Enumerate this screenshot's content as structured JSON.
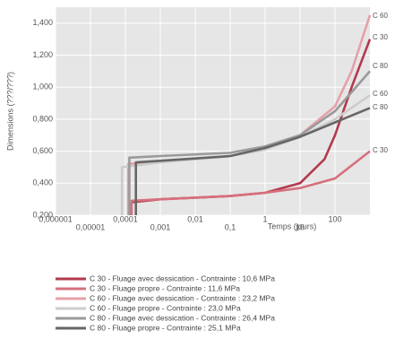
{
  "chart_data": {
    "type": "line",
    "x_label": "Temps (jours)",
    "y_label": "Dimensions (???/???)",
    "log_x": true,
    "grid": true,
    "xlim": [
      1e-06,
      1000
    ],
    "xticks": [
      {
        "value": 1e-06,
        "label": "0,000001"
      },
      {
        "value": 1e-05,
        "label": "0,00001"
      },
      {
        "value": 0.0001,
        "label": "0,0001"
      },
      {
        "value": 0.001,
        "label": "0,001"
      },
      {
        "value": 0.01,
        "label": "0,01"
      },
      {
        "value": 0.1,
        "label": "0,1"
      },
      1,
      10,
      100
    ],
    "ylim": [
      0.2,
      1.5
    ],
    "yticks": [
      {
        "value": 0.2,
        "label": "0,200"
      },
      {
        "value": 0.4,
        "label": "0,400"
      },
      {
        "value": 0.6,
        "label": "0,600"
      },
      {
        "value": 0.8,
        "label": "0,800"
      },
      {
        "value": 1,
        "label": "1,000"
      },
      {
        "value": 1.2,
        "label": "1,200"
      },
      {
        "value": 1.4,
        "label": "1,400"
      }
    ],
    "series": [
      {
        "name": "C 30 - Fluage avec dessication - Contrainte : 10,6 MPa",
        "label": "C 30",
        "color": "#b23a4c",
        "x": [
          0.00014,
          0.00014,
          0.001,
          0.01,
          0.1,
          1,
          10,
          50,
          100,
          300,
          1000
        ],
        "values": [
          0.2,
          0.28,
          0.3,
          0.31,
          0.32,
          0.34,
          0.4,
          0.55,
          0.7,
          1.0,
          1.3
        ]
      },
      {
        "name": "C 30 - Fluage propre - Contrainte : 11,6 MPa",
        "label": "C 30",
        "color": "#d6707c",
        "x": [
          0.00015,
          0.00015,
          0.001,
          0.01,
          0.1,
          1,
          10,
          100,
          1000
        ],
        "values": [
          0.2,
          0.29,
          0.3,
          0.31,
          0.32,
          0.34,
          0.37,
          0.43,
          0.6
        ]
      },
      {
        "name": "C 60 - Fluage avec dessication - Contrainte : 23,2 MPa",
        "label": "C 60",
        "color": "#e6a0a8",
        "x": [
          0.00012,
          0.00012,
          0.001,
          0.01,
          0.1,
          1,
          10,
          100,
          300,
          1000
        ],
        "values": [
          0.2,
          0.52,
          0.54,
          0.55,
          0.57,
          0.61,
          0.7,
          0.88,
          1.1,
          1.45
        ]
      },
      {
        "name": "C 60 - Fluage propre - Contrainte : 23,0 MPa",
        "label": "C 60",
        "color": "#cccccc",
        "x": [
          8e-05,
          8e-05,
          0.001,
          0.1,
          1,
          10,
          100,
          1000
        ],
        "values": [
          0.2,
          0.5,
          0.53,
          0.57,
          0.61,
          0.69,
          0.8,
          0.95
        ]
      },
      {
        "name": "C 80 - Fluage avec dessication - Contrainte : 26,4 MPa",
        "label": "C 80",
        "color": "#9a9a9a",
        "x": [
          0.00013,
          0.00013,
          0.001,
          0.1,
          1,
          10,
          100,
          1000
        ],
        "values": [
          0.2,
          0.56,
          0.57,
          0.59,
          0.63,
          0.7,
          0.85,
          1.1
        ]
      },
      {
        "name": "C 80 - Fluage propre - Contrainte : 25,1 MPa",
        "label": "C 80",
        "color": "#666666",
        "x": [
          0.0002,
          0.0002,
          0.001,
          0.1,
          1,
          10,
          100,
          1000
        ],
        "values": [
          0.2,
          0.53,
          0.54,
          0.57,
          0.62,
          0.69,
          0.78,
          0.87
        ]
      }
    ]
  }
}
